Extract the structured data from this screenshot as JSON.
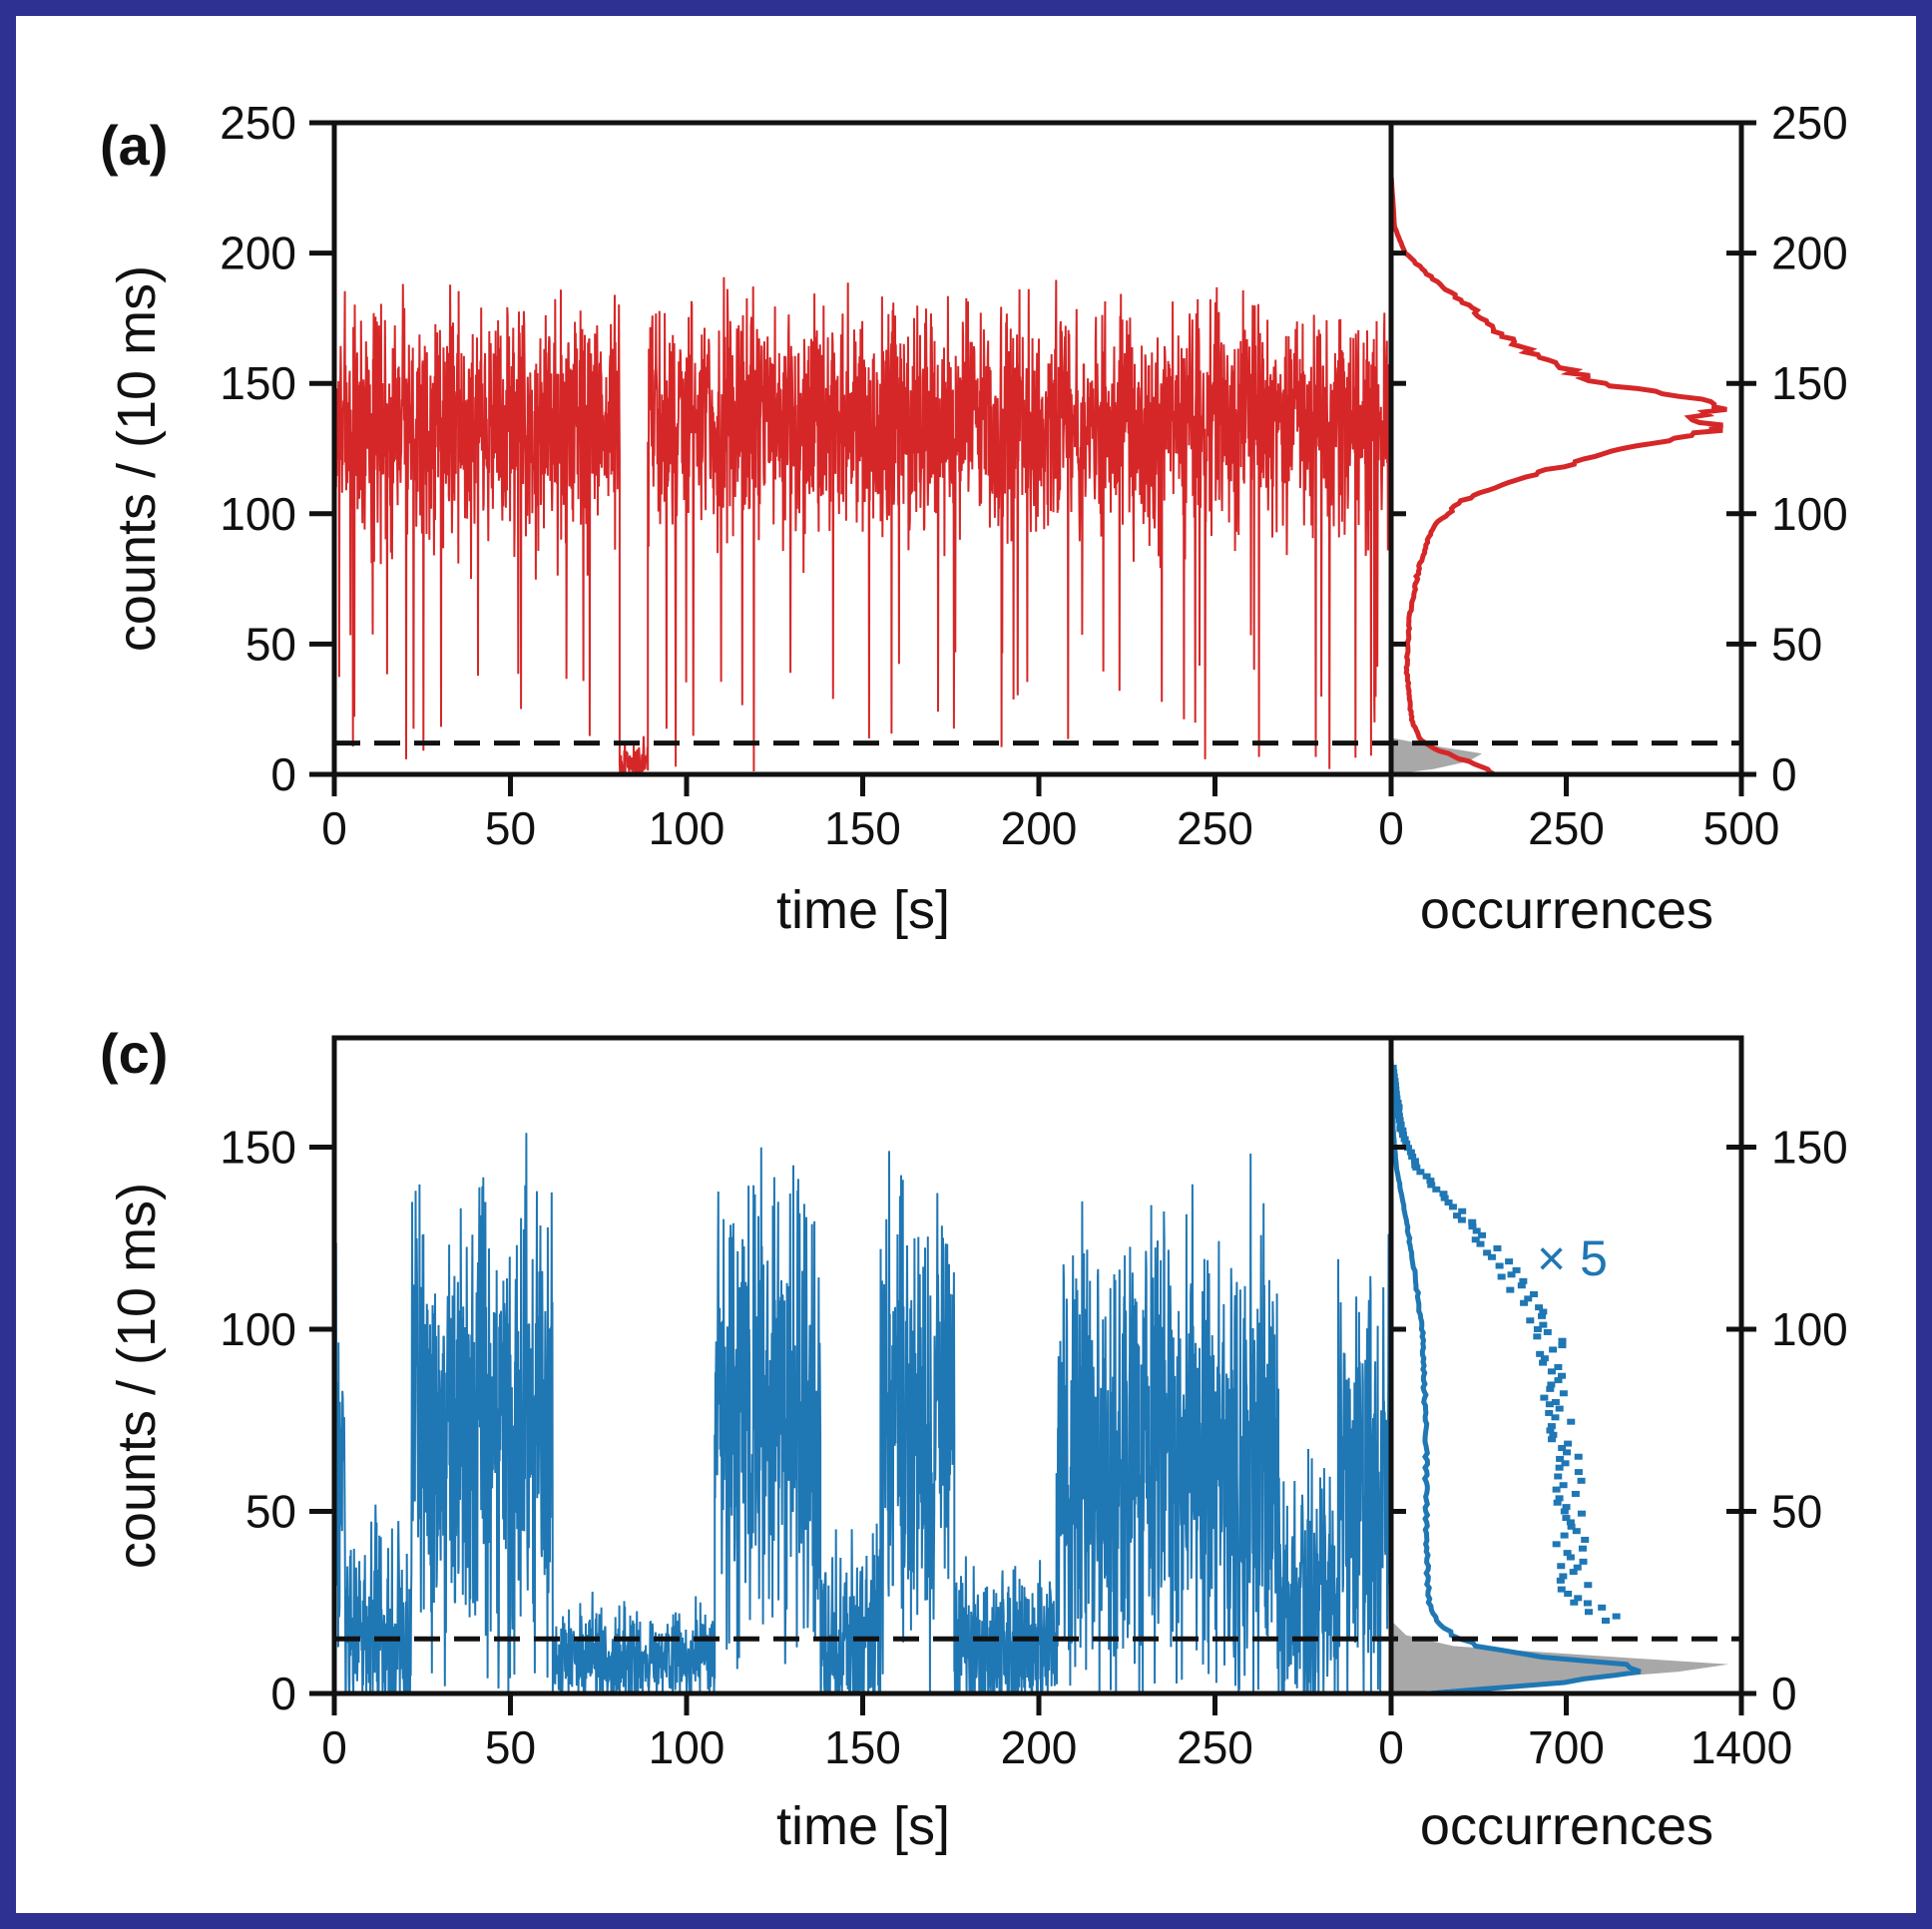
{
  "colors": {
    "border": "#2e3192",
    "red": "#d62728",
    "blue": "#1f77b4",
    "gray": "#a8a8a8"
  },
  "chart_data": [
    {
      "type": "line",
      "panel_label": "(a)",
      "xlabel": "time [s]",
      "ylabel": "counts / (10 ms)",
      "xlim": [
        0,
        300
      ],
      "ylim": [
        0,
        250
      ],
      "xticks": [
        0,
        50,
        100,
        150,
        200,
        250
      ],
      "yticks": [
        0,
        50,
        100,
        150,
        200,
        250
      ],
      "threshold": 12,
      "color": "red",
      "trace_segments": [
        {
          "start": 0,
          "end": 81,
          "mean": 135,
          "spread": 40
        },
        {
          "start": 81,
          "end": 89,
          "mean": 5,
          "spread": 8
        },
        {
          "start": 89,
          "end": 300,
          "mean": 135,
          "spread": 38
        }
      ],
      "histogram": {
        "xlabel": "occurrences",
        "xlim": [
          0,
          500
        ],
        "xticks": [
          0,
          250,
          500
        ],
        "points": [
          [
            0,
            150
          ],
          [
            3,
            130
          ],
          [
            6,
            100
          ],
          [
            10,
            60
          ],
          [
            14,
            40
          ],
          [
            20,
            30
          ],
          [
            40,
            22
          ],
          [
            60,
            26
          ],
          [
            80,
            40
          ],
          [
            95,
            60
          ],
          [
            105,
            100
          ],
          [
            115,
            200
          ],
          [
            125,
            330
          ],
          [
            130,
            430
          ],
          [
            133,
            470
          ],
          [
            137,
            440
          ],
          [
            140,
            475
          ],
          [
            145,
            420
          ],
          [
            150,
            300
          ],
          [
            160,
            210
          ],
          [
            170,
            150
          ],
          [
            180,
            110
          ],
          [
            190,
            60
          ],
          [
            200,
            20
          ],
          [
            210,
            5
          ],
          [
            230,
            0
          ]
        ],
        "background_points": [
          [
            0,
            0
          ],
          [
            2,
            60
          ],
          [
            5,
            110
          ],
          [
            8,
            130
          ],
          [
            11,
            60
          ],
          [
            14,
            0
          ]
        ]
      }
    },
    {
      "type": "line",
      "panel_label": "(c)",
      "xlabel": "time [s]",
      "ylabel": "counts / (10 ms)",
      "xlim": [
        0,
        300
      ],
      "ylim": [
        0,
        180
      ],
      "xticks": [
        0,
        50,
        100,
        150,
        200,
        250
      ],
      "yticks": [
        0,
        50,
        100,
        150
      ],
      "threshold": 15,
      "color": "blue",
      "trace_segments": [
        {
          "start": 0,
          "end": 3,
          "mean": 70,
          "spread": 45
        },
        {
          "start": 3,
          "end": 22,
          "mean": 15,
          "spread": 25
        },
        {
          "start": 22,
          "end": 62,
          "mean": 75,
          "spread": 55
        },
        {
          "start": 62,
          "end": 108,
          "mean": 10,
          "spread": 12
        },
        {
          "start": 108,
          "end": 138,
          "mean": 80,
          "spread": 55
        },
        {
          "start": 138,
          "end": 155,
          "mean": 15,
          "spread": 25
        },
        {
          "start": 155,
          "end": 176,
          "mean": 75,
          "spread": 55
        },
        {
          "start": 176,
          "end": 205,
          "mean": 12,
          "spread": 20
        },
        {
          "start": 205,
          "end": 268,
          "mean": 65,
          "spread": 55
        },
        {
          "start": 268,
          "end": 285,
          "mean": 25,
          "spread": 30
        },
        {
          "start": 285,
          "end": 300,
          "mean": 60,
          "spread": 50
        }
      ],
      "histogram": {
        "xlabel": "occurrences",
        "xlim": [
          0,
          1400
        ],
        "xticks": [
          0,
          700,
          1400
        ],
        "points": [
          [
            0,
            150
          ],
          [
            3,
            700
          ],
          [
            6,
            1000
          ],
          [
            8,
            950
          ],
          [
            10,
            620
          ],
          [
            13,
            350
          ],
          [
            16,
            250
          ],
          [
            20,
            180
          ],
          [
            25,
            150
          ],
          [
            35,
            145
          ],
          [
            50,
            140
          ],
          [
            65,
            140
          ],
          [
            80,
            135
          ],
          [
            100,
            125
          ],
          [
            115,
            95
          ],
          [
            130,
            60
          ],
          [
            145,
            20
          ],
          [
            155,
            8
          ],
          [
            175,
            0
          ]
        ],
        "background_points": [
          [
            0,
            0
          ],
          [
            3,
            600
          ],
          [
            6,
            1150
          ],
          [
            8,
            1350
          ],
          [
            10,
            900
          ],
          [
            13,
            250
          ],
          [
            16,
            60
          ],
          [
            20,
            0
          ]
        ],
        "scaled_annotation": "× 5",
        "scale_factor": 5,
        "scaled_range": [
          20,
          172
        ]
      }
    }
  ]
}
